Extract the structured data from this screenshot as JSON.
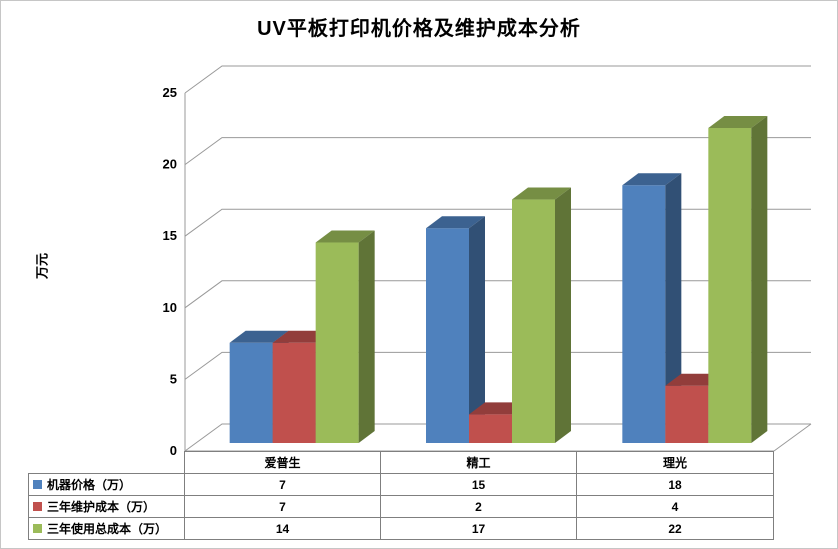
{
  "chart": {
    "title": "UV平板打印机价格及维护成本分析",
    "y_axis": {
      "label": "万元",
      "ticks": [
        0,
        5,
        10,
        15,
        20,
        25
      ],
      "max": 25
    }
  },
  "chart_data": {
    "type": "bar",
    "style": "3d-clustered-column",
    "title": "UV平板打印机价格及维护成本分析",
    "xlabel": "",
    "ylabel": "万元",
    "ylim": [
      0,
      25
    ],
    "y_tick_step": 5,
    "grid": true,
    "legend_position": "bottom-table",
    "categories": [
      "爱普生",
      "精工",
      "理光"
    ],
    "series": [
      {
        "name": "机器价格（万）",
        "color": "#4F81BD",
        "values": [
          7,
          15,
          18
        ]
      },
      {
        "name": "三年维护成本（万）",
        "color": "#C0504D",
        "values": [
          7,
          2,
          4
        ]
      },
      {
        "name": "三年使用总成本（万）",
        "color": "#9BBB59",
        "values": [
          14,
          17,
          22
        ]
      }
    ]
  }
}
